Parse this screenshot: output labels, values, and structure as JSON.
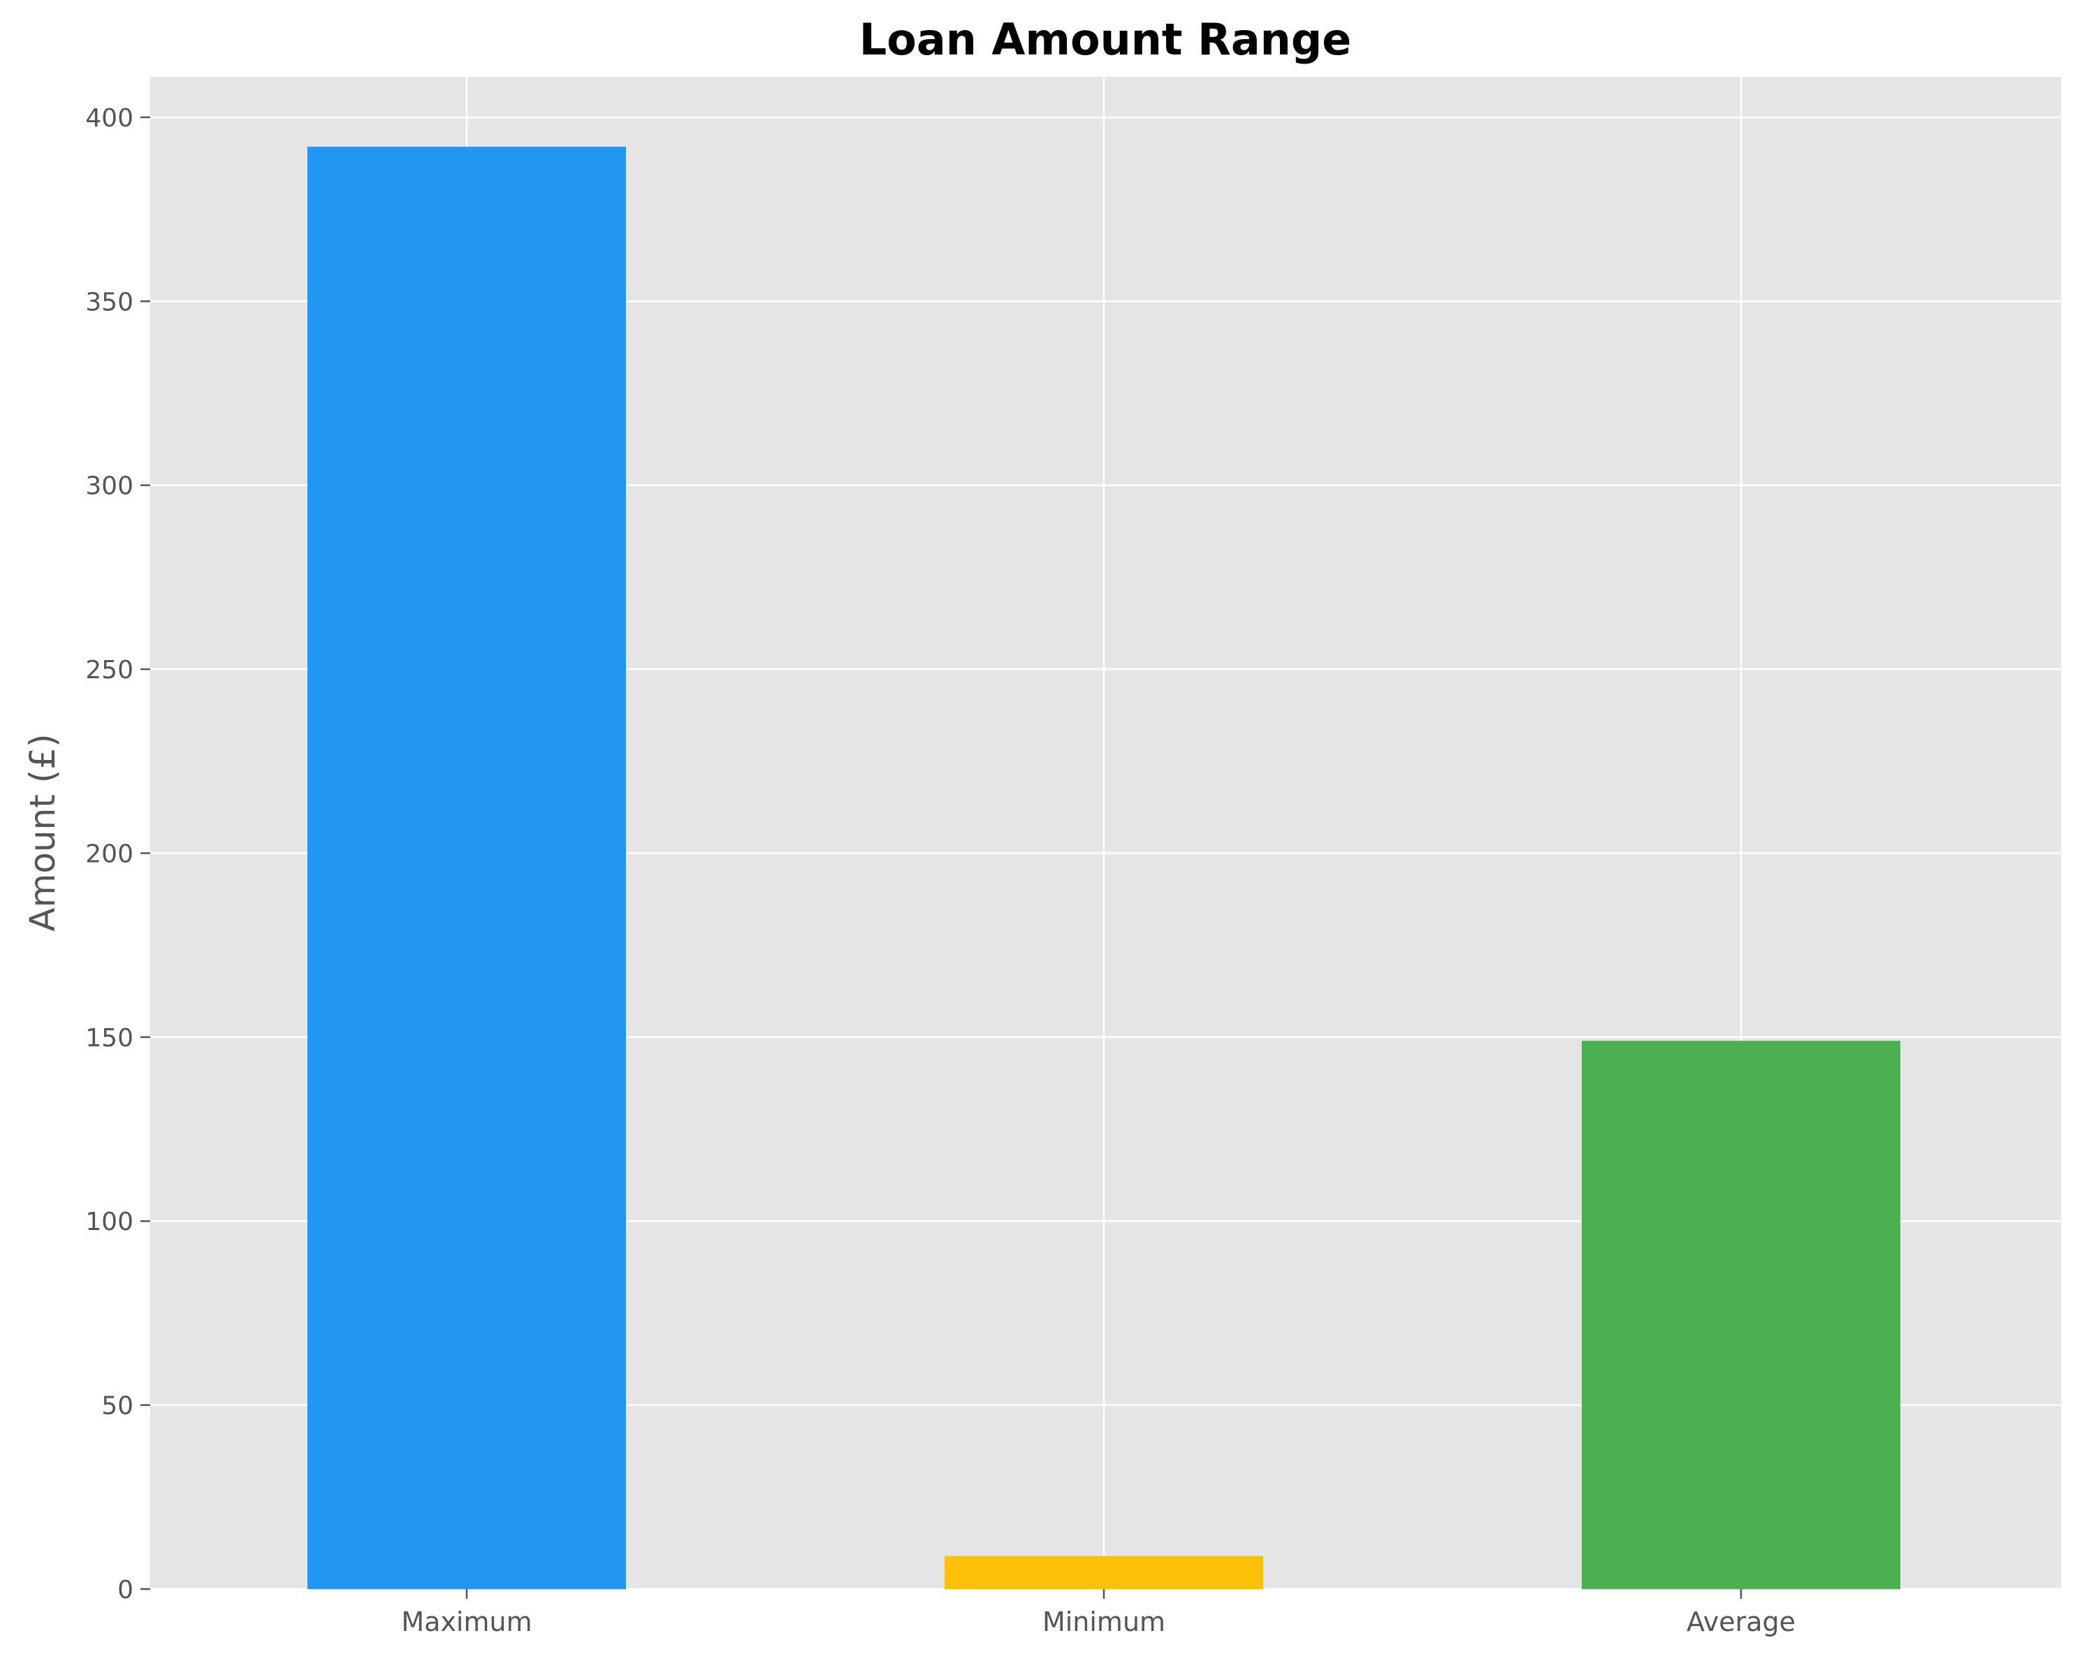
{
  "chart_data": {
    "type": "bar",
    "title": "Loan Amount Range",
    "xlabel": "",
    "ylabel": "Amount (£)",
    "categories": [
      "Maximum",
      "Minimum",
      "Average"
    ],
    "values": [
      392,
      9,
      149
    ],
    "colors": [
      "#2196F3",
      "#FFC107",
      "#4CAF50"
    ],
    "ylim": [
      0,
      411
    ],
    "yticks": [
      0,
      50,
      100,
      150,
      200,
      250,
      300,
      350,
      400
    ],
    "grid": true,
    "legend": "none",
    "background": "#E5E5E5",
    "grid_color": "#FFFFFF",
    "tick_label_color": "#555555"
  }
}
